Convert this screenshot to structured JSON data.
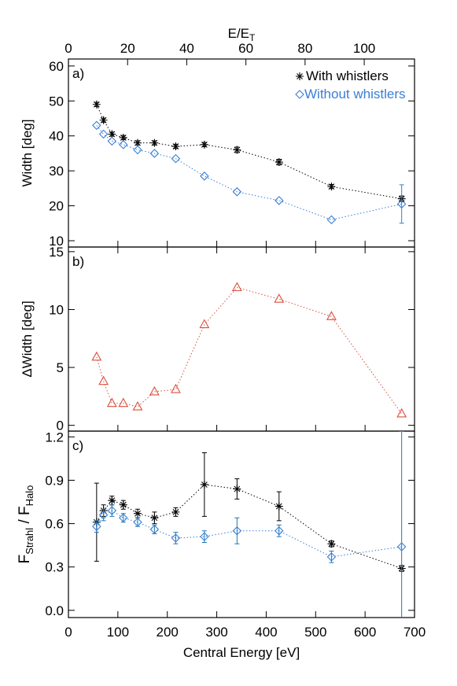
{
  "chart_data": [
    {
      "type": "line",
      "label": "a)",
      "ylabel": "Width [deg]",
      "x2label": [
        "E/E",
        "T"
      ],
      "x2lim": [
        0,
        117
      ],
      "x2ticks": [
        0,
        20,
        40,
        60,
        80,
        100
      ],
      "xlim": [
        0,
        700
      ],
      "ylim": [
        8.2,
        62
      ],
      "yticks": [
        10,
        20,
        30,
        40,
        50,
        60
      ],
      "legend": "upper right",
      "x": [
        57,
        71,
        88,
        111,
        140,
        174,
        217,
        275,
        341,
        426,
        532,
        674
      ],
      "series": [
        {
          "name": "With whistlers",
          "color": "#000000",
          "marker": "asterisk",
          "values": [
            49,
            44.5,
            40.5,
            39.5,
            38,
            38,
            37,
            37.5,
            36,
            32.5,
            25.5,
            22
          ],
          "errors": [
            0.6,
            0.6,
            0.6,
            0.6,
            0.6,
            0.6,
            0.6,
            0.6,
            0.8,
            0.8,
            0.6,
            0.8
          ]
        },
        {
          "name": "Without whistlers",
          "color": "#3a7fd5",
          "marker": "diamond",
          "values": [
            43,
            40.5,
            38.5,
            37.5,
            36,
            35,
            33.5,
            28.5,
            24,
            21.5,
            16,
            20.5
          ],
          "errors": [
            null,
            null,
            null,
            null,
            null,
            null,
            null,
            null,
            null,
            null,
            null,
            5.5
          ]
        }
      ]
    },
    {
      "type": "line",
      "label": "b)",
      "ylabel": "ΔWidth [deg]",
      "xlim": [
        0,
        700
      ],
      "ylim": [
        -0.5,
        15.4
      ],
      "yticks": [
        0,
        5,
        10,
        15
      ],
      "x": [
        57,
        71,
        88,
        111,
        140,
        174,
        217,
        275,
        341,
        426,
        532,
        674
      ],
      "series": [
        {
          "color": "#d9503f",
          "marker": "triangle",
          "values": [
            5.9,
            3.8,
            1.9,
            1.9,
            1.6,
            2.9,
            3.1,
            8.7,
            11.9,
            10.9,
            9.4,
            1.0
          ]
        }
      ]
    },
    {
      "type": "line",
      "label": "c)",
      "ylabel": [
        "F",
        "Strahl",
        " / F",
        "Halo"
      ],
      "xlabel": "Central Energy [eV]",
      "xlim": [
        0,
        700
      ],
      "xticks": [
        0,
        100,
        200,
        300,
        400,
        500,
        600,
        700
      ],
      "ylim": [
        -0.05,
        1.24
      ],
      "yticks": [
        {
          "value": 0,
          "label": "0.0"
        },
        {
          "value": 0.3,
          "label": "0.3"
        },
        {
          "value": 0.6,
          "label": "0.6"
        },
        {
          "value": 0.9,
          "label": "0.9"
        },
        {
          "value": 1.2,
          "label": "1.2"
        }
      ],
      "x": [
        57,
        71,
        88,
        111,
        140,
        174,
        217,
        275,
        341,
        426,
        532,
        674
      ],
      "series": [
        {
          "color": "#000000",
          "marker": "asterisk",
          "values": [
            0.61,
            0.69,
            0.76,
            0.73,
            0.67,
            0.64,
            0.68,
            0.87,
            0.84,
            0.72,
            0.46,
            0.29
          ],
          "errors": [
            0.27,
            0.04,
            0.03,
            0.03,
            0.03,
            0.04,
            0.03,
            0.22,
            0.07,
            0.1,
            0.02,
            0.02
          ]
        },
        {
          "color": "#3a7fd5",
          "marker": "diamond",
          "values": [
            0.58,
            0.66,
            0.69,
            0.64,
            0.61,
            0.56,
            0.5,
            0.51,
            0.55,
            0.55,
            0.37,
            0.44
          ],
          "errors": [
            0.04,
            0.04,
            0.04,
            0.03,
            0.03,
            0.03,
            0.04,
            0.04,
            0.09,
            0.04,
            0.04,
            0.8
          ]
        }
      ]
    }
  ]
}
